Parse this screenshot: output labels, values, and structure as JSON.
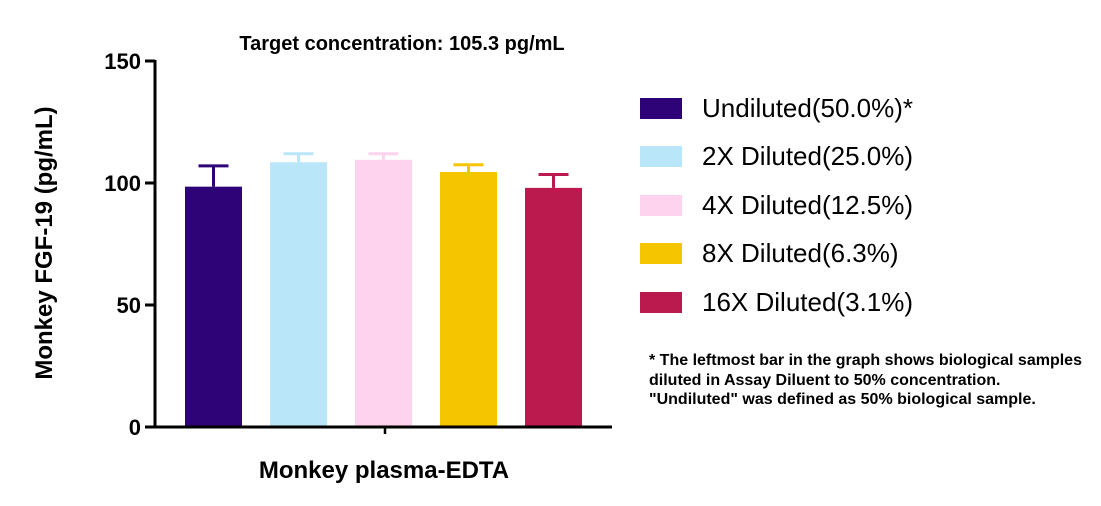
{
  "chart_data": {
    "type": "bar",
    "title": "Target concentration: 105.3 pg/mL",
    "ylabel": "Monkey FGF-19 (pg/mL)",
    "xlabel": "Monkey plasma-EDTA",
    "ylim": [
      0,
      150
    ],
    "yticks": [
      "0",
      "50",
      "100",
      "150"
    ],
    "grid": false,
    "legend_position": "right",
    "series": [
      {
        "name": "Undiluted(50.0%)*",
        "value": 98.5,
        "error": 8.5,
        "color": "#2E0377"
      },
      {
        "name": "2X Diluted(25.0%)",
        "value": 108.5,
        "error": 3.5,
        "color": "#BAE6F9"
      },
      {
        "name": "4X Diluted(12.5%)",
        "value": 109.5,
        "error": 2.5,
        "color": "#FDD3EE"
      },
      {
        "name": "8X Diluted(6.3%)",
        "value": 104.5,
        "error": 3.0,
        "color": "#F5C500"
      },
      {
        "name": "16X Diluted(3.1%)",
        "value": 98.0,
        "error": 5.5,
        "color": "#BB1A4E"
      }
    ]
  },
  "footnote": "* The leftmost bar in the graph shows biological samples diluted in Assay Diluent to 50% concentration. \"Undiluted\" was defined as 50% biological sample."
}
